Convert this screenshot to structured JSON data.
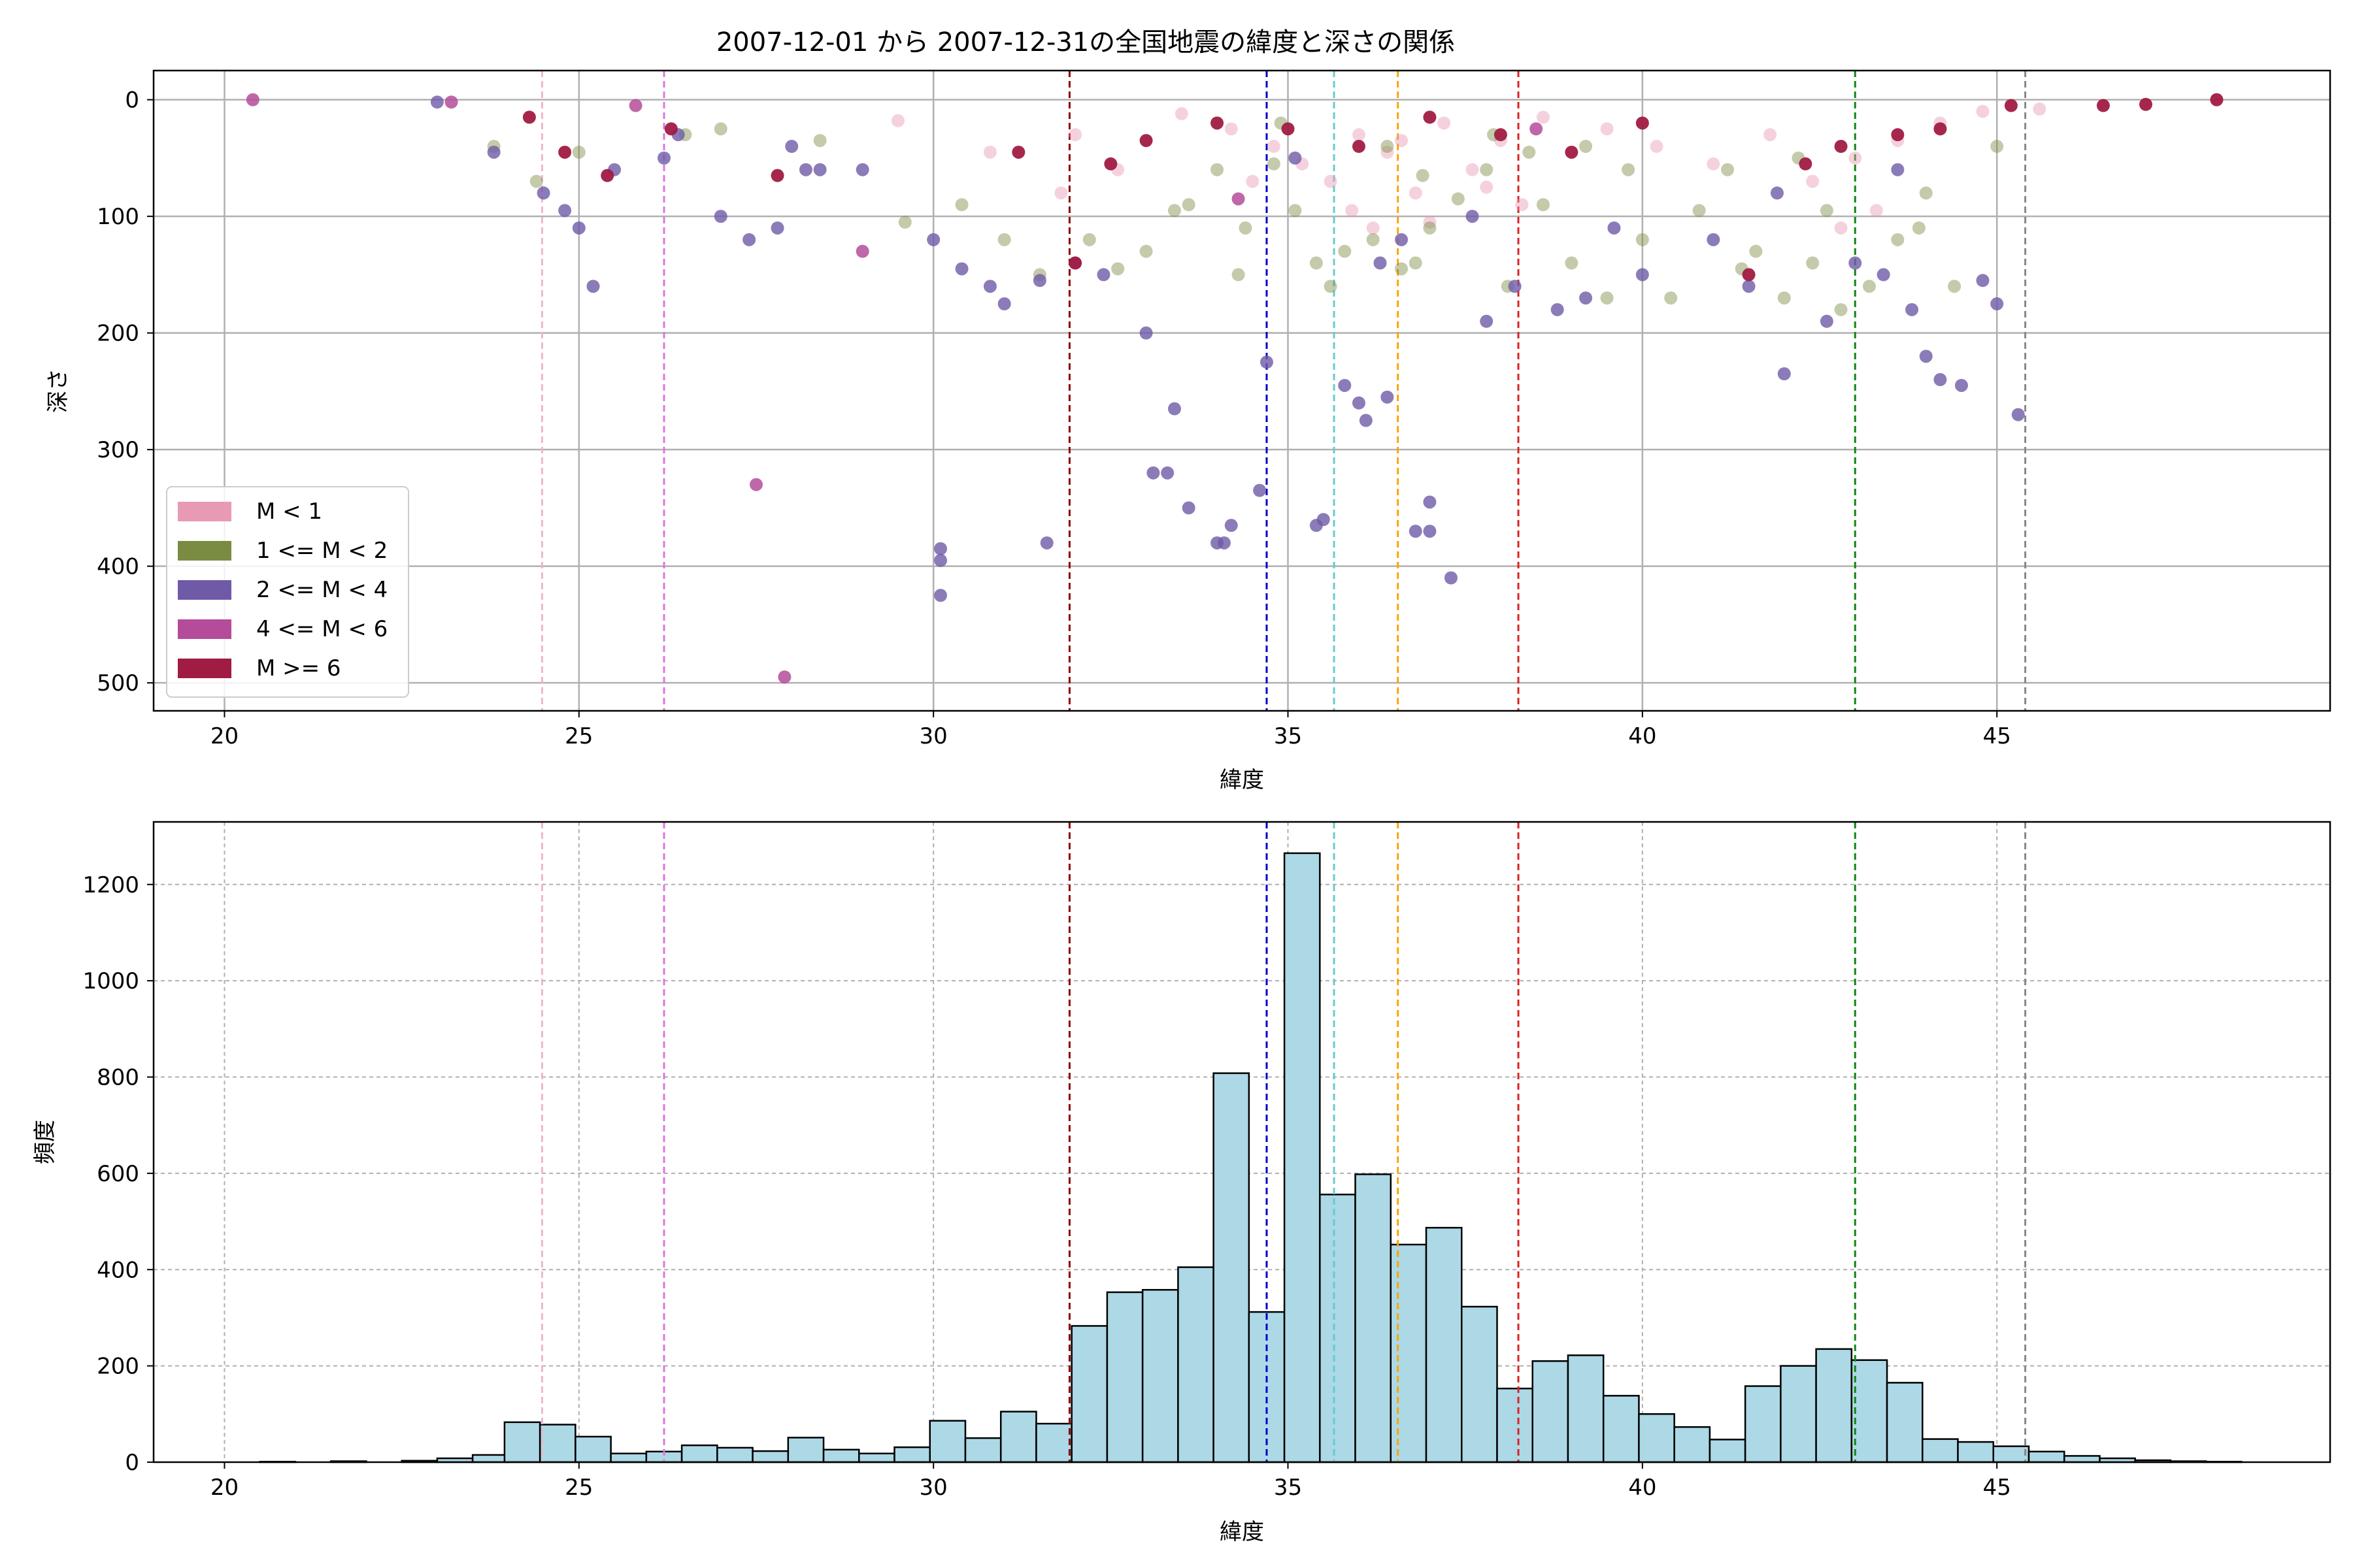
{
  "chart_data": [
    {
      "type": "scatter",
      "title": "2007-12-01 から 2007-12-31の全国地震の緯度と深さの関係",
      "xlabel": "緯度",
      "ylabel": "深さ",
      "xlim": [
        19,
        49.7
      ],
      "ylim": [
        524,
        -25
      ],
      "y_inverted": true,
      "xticks": [
        20,
        25,
        30,
        35,
        40,
        45
      ],
      "yticks": [
        0,
        100,
        200,
        300,
        400,
        500
      ],
      "grid": true,
      "legend_position": "lower-left",
      "legend": [
        {
          "label": "M < 1",
          "color": "#e89ab5"
        },
        {
          "label": "1 <= M < 2",
          "color": "#7a8c42"
        },
        {
          "label": "2 <= M < 4",
          "color": "#6f5aa8"
        },
        {
          "label": "4 <= M < 6",
          "color": "#b44c9a"
        },
        {
          "label": "M >= 6",
          "color": "#a01c42"
        }
      ],
      "series": [
        {
          "class": 0,
          "points": [
            [
              33.5,
              12
            ],
            [
              34.2,
              25
            ],
            [
              34.8,
              40
            ],
            [
              35.2,
              55
            ],
            [
              35.6,
              70
            ],
            [
              36.0,
              30
            ],
            [
              36.4,
              45
            ],
            [
              36.8,
              80
            ],
            [
              37.2,
              20
            ],
            [
              37.6,
              60
            ],
            [
              38.0,
              35
            ],
            [
              38.6,
              15
            ],
            [
              39.5,
              25
            ],
            [
              40.2,
              40
            ],
            [
              41.0,
              55
            ],
            [
              41.8,
              30
            ],
            [
              42.4,
              70
            ],
            [
              43.0,
              50
            ],
            [
              43.6,
              35
            ],
            [
              44.2,
              20
            ],
            [
              44.8,
              10
            ],
            [
              45.6,
              8
            ],
            [
              32.6,
              60
            ],
            [
              31.8,
              80
            ],
            [
              30.8,
              45
            ],
            [
              29.5,
              18
            ],
            [
              36.2,
              110
            ],
            [
              35.9,
              95
            ],
            [
              37.0,
              105
            ],
            [
              38.3,
              90
            ],
            [
              42.8,
              110
            ],
            [
              43.3,
              95
            ],
            [
              34.5,
              70
            ],
            [
              36.6,
              35
            ],
            [
              32.0,
              30
            ],
            [
              37.8,
              75
            ]
          ]
        },
        {
          "class": 1,
          "points": [
            [
              23.8,
              40
            ],
            [
              24.4,
              70
            ],
            [
              25.0,
              45
            ],
            [
              26.5,
              30
            ],
            [
              29.6,
              105
            ],
            [
              31.0,
              120
            ],
            [
              31.5,
              150
            ],
            [
              32.6,
              145
            ],
            [
              33.0,
              130
            ],
            [
              33.6,
              90
            ],
            [
              34.0,
              60
            ],
            [
              34.4,
              110
            ],
            [
              34.8,
              55
            ],
            [
              35.1,
              95
            ],
            [
              35.4,
              140
            ],
            [
              35.8,
              130
            ],
            [
              36.2,
              120
            ],
            [
              36.6,
              145
            ],
            [
              37.0,
              110
            ],
            [
              37.4,
              85
            ],
            [
              37.8,
              60
            ],
            [
              38.1,
              160
            ],
            [
              38.6,
              90
            ],
            [
              39.0,
              140
            ],
            [
              39.5,
              170
            ],
            [
              39.8,
              60
            ],
            [
              40.4,
              170
            ],
            [
              40.8,
              95
            ],
            [
              41.2,
              60
            ],
            [
              41.6,
              130
            ],
            [
              42.0,
              170
            ],
            [
              42.4,
              140
            ],
            [
              42.8,
              180
            ],
            [
              43.2,
              160
            ],
            [
              43.6,
              120
            ],
            [
              44.0,
              80
            ],
            [
              44.4,
              160
            ],
            [
              36.4,
              40
            ],
            [
              37.9,
              30
            ],
            [
              34.9,
              20
            ],
            [
              36.9,
              65
            ],
            [
              42.2,
              50
            ],
            [
              43.9,
              110
            ],
            [
              35.6,
              160
            ],
            [
              33.4,
              95
            ],
            [
              32.2,
              120
            ],
            [
              30.4,
              90
            ],
            [
              28.4,
              35
            ],
            [
              27.0,
              25
            ],
            [
              40.0,
              120
            ],
            [
              41.4,
              145
            ],
            [
              38.4,
              45
            ],
            [
              36.8,
              140
            ],
            [
              34.3,
              150
            ],
            [
              45.0,
              40
            ],
            [
              42.6,
              95
            ],
            [
              39.2,
              40
            ]
          ]
        },
        {
          "class": 2,
          "points": [
            [
              23.0,
              2
            ],
            [
              23.8,
              45
            ],
            [
              24.5,
              80
            ],
            [
              24.8,
              95
            ],
            [
              25.0,
              110
            ],
            [
              25.2,
              160
            ],
            [
              25.5,
              60
            ],
            [
              26.2,
              50
            ],
            [
              27.0,
              100
            ],
            [
              27.4,
              120
            ],
            [
              27.8,
              110
            ],
            [
              28.0,
              40
            ],
            [
              28.4,
              60
            ],
            [
              29.0,
              60
            ],
            [
              30.0,
              120
            ],
            [
              30.4,
              145
            ],
            [
              30.8,
              160
            ],
            [
              31.0,
              175
            ],
            [
              31.5,
              155
            ],
            [
              32.0,
              140
            ],
            [
              32.4,
              150
            ],
            [
              33.0,
              200
            ],
            [
              33.1,
              320
            ],
            [
              33.4,
              265
            ],
            [
              33.6,
              350
            ],
            [
              34.0,
              380
            ],
            [
              34.2,
              365
            ],
            [
              34.6,
              335
            ],
            [
              34.7,
              225
            ],
            [
              35.4,
              365
            ],
            [
              35.5,
              360
            ],
            [
              35.8,
              245
            ],
            [
              36.0,
              260
            ],
            [
              36.1,
              275
            ],
            [
              36.4,
              255
            ],
            [
              36.6,
              120
            ],
            [
              36.8,
              370
            ],
            [
              37.0,
              370
            ],
            [
              37.0,
              345
            ],
            [
              37.3,
              410
            ],
            [
              37.8,
              190
            ],
            [
              38.2,
              160
            ],
            [
              38.8,
              180
            ],
            [
              39.2,
              170
            ],
            [
              40.0,
              150
            ],
            [
              41.0,
              120
            ],
            [
              41.5,
              160
            ],
            [
              42.0,
              235
            ],
            [
              42.6,
              190
            ],
            [
              43.0,
              140
            ],
            [
              43.4,
              150
            ],
            [
              43.8,
              180
            ],
            [
              44.0,
              220
            ],
            [
              44.2,
              240
            ],
            [
              44.5,
              245
            ],
            [
              44.8,
              155
            ],
            [
              45.0,
              175
            ],
            [
              45.3,
              270
            ],
            [
              30.1,
              385
            ],
            [
              30.1,
              395
            ],
            [
              30.1,
              425
            ],
            [
              31.6,
              380
            ],
            [
              33.3,
              320
            ],
            [
              34.1,
              380
            ],
            [
              35.1,
              50
            ],
            [
              36.3,
              140
            ],
            [
              37.6,
              100
            ],
            [
              39.6,
              110
            ],
            [
              41.9,
              80
            ],
            [
              43.6,
              60
            ],
            [
              28.2,
              60
            ],
            [
              26.4,
              30
            ]
          ]
        },
        {
          "class": 3,
          "points": [
            [
              20.4,
              0
            ],
            [
              27.5,
              330
            ],
            [
              27.9,
              495
            ],
            [
              29.0,
              130
            ],
            [
              23.2,
              2
            ],
            [
              25.8,
              5
            ],
            [
              34.3,
              85
            ],
            [
              38.5,
              25
            ]
          ]
        },
        {
          "class": 4,
          "points": [
            [
              24.3,
              15
            ],
            [
              24.8,
              45
            ],
            [
              25.4,
              65
            ],
            [
              26.3,
              25
            ],
            [
              27.8,
              65
            ],
            [
              32.0,
              140
            ],
            [
              32.5,
              55
            ],
            [
              33.0,
              35
            ],
            [
              34.0,
              20
            ],
            [
              35.0,
              25
            ],
            [
              36.0,
              40
            ],
            [
              37.0,
              15
            ],
            [
              38.0,
              30
            ],
            [
              39.0,
              45
            ],
            [
              40.0,
              20
            ],
            [
              41.5,
              150
            ],
            [
              42.3,
              55
            ],
            [
              42.8,
              40
            ],
            [
              43.6,
              30
            ],
            [
              44.2,
              25
            ],
            [
              45.2,
              5
            ],
            [
              46.5,
              5
            ],
            [
              47.1,
              4
            ],
            [
              48.1,
              0
            ],
            [
              31.2,
              45
            ]
          ]
        }
      ],
      "vlines": [
        {
          "x": 24.48,
          "color": "#f0b5cc"
        },
        {
          "x": 26.2,
          "color": "#dd77dd"
        },
        {
          "x": 31.92,
          "color": "#8b0000"
        },
        {
          "x": 34.7,
          "color": "#0000cc"
        },
        {
          "x": 35.65,
          "color": "#66cccc"
        },
        {
          "x": 36.55,
          "color": "#ffa500"
        },
        {
          "x": 38.25,
          "color": "#dd2222"
        },
        {
          "x": 43.0,
          "color": "#118811"
        },
        {
          "x": 45.4,
          "color": "#888888"
        }
      ]
    },
    {
      "type": "bar",
      "xlabel": "緯度",
      "ylabel": "頻度",
      "xlim": [
        19,
        49.7
      ],
      "ylim": [
        0,
        1330
      ],
      "xticks": [
        20,
        25,
        30,
        35,
        40,
        45
      ],
      "yticks": [
        0,
        200,
        400,
        600,
        800,
        1000,
        1200
      ],
      "grid": true,
      "bar_color": "#add8e6",
      "bins": [
        [
          20.0,
          0
        ],
        [
          20.5,
          1
        ],
        [
          21.0,
          0
        ],
        [
          21.5,
          2
        ],
        [
          22.0,
          0
        ],
        [
          22.5,
          3
        ],
        [
          23.0,
          8
        ],
        [
          23.5,
          15
        ],
        [
          23.95,
          83
        ],
        [
          24.45,
          78
        ],
        [
          24.95,
          53
        ],
        [
          25.45,
          18
        ],
        [
          25.95,
          22
        ],
        [
          26.45,
          35
        ],
        [
          26.95,
          30
        ],
        [
          27.45,
          23
        ],
        [
          27.95,
          51
        ],
        [
          28.45,
          26
        ],
        [
          28.95,
          18
        ],
        [
          29.45,
          31
        ],
        [
          29.95,
          86
        ],
        [
          30.45,
          50
        ],
        [
          30.95,
          105
        ],
        [
          31.45,
          80
        ],
        [
          31.95,
          283
        ],
        [
          32.45,
          353
        ],
        [
          32.95,
          358
        ],
        [
          33.45,
          405
        ],
        [
          33.95,
          808
        ],
        [
          34.45,
          312
        ],
        [
          34.95,
          1265
        ],
        [
          35.45,
          556
        ],
        [
          35.95,
          598
        ],
        [
          36.45,
          452
        ],
        [
          36.95,
          487
        ],
        [
          37.45,
          323
        ],
        [
          37.95,
          153
        ],
        [
          38.45,
          210
        ],
        [
          38.95,
          222
        ],
        [
          39.45,
          138
        ],
        [
          39.95,
          100
        ],
        [
          40.45,
          73
        ],
        [
          40.95,
          47
        ],
        [
          41.45,
          158
        ],
        [
          41.95,
          200
        ],
        [
          42.45,
          235
        ],
        [
          42.95,
          212
        ],
        [
          43.45,
          165
        ],
        [
          43.95,
          48
        ],
        [
          44.45,
          42
        ],
        [
          44.95,
          33
        ],
        [
          45.45,
          22
        ],
        [
          45.95,
          13
        ],
        [
          46.45,
          8
        ],
        [
          46.95,
          4
        ],
        [
          47.45,
          2
        ],
        [
          47.95,
          1
        ]
      ],
      "bin_width": 0.5,
      "vlines": [
        {
          "x": 24.48,
          "color": "#f0b5cc"
        },
        {
          "x": 26.2,
          "color": "#dd77dd"
        },
        {
          "x": 31.92,
          "color": "#8b0000"
        },
        {
          "x": 34.7,
          "color": "#0000cc"
        },
        {
          "x": 35.65,
          "color": "#66cccc"
        },
        {
          "x": 36.55,
          "color": "#ffa500"
        },
        {
          "x": 38.25,
          "color": "#dd2222"
        },
        {
          "x": 43.0,
          "color": "#118811"
        },
        {
          "x": 45.4,
          "color": "#888888"
        }
      ]
    }
  ]
}
